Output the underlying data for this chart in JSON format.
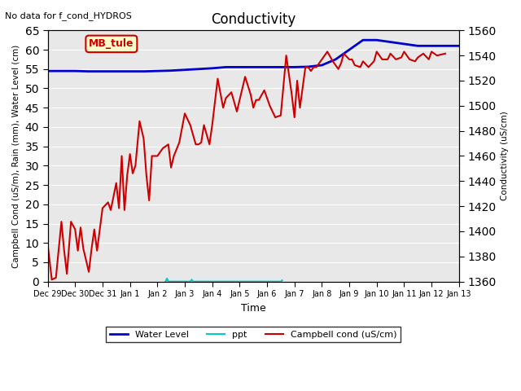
{
  "title": "Conductivity",
  "top_left_text": "No data for f_cond_HYDROS",
  "xlabel": "Time",
  "ylabel_left": "Campbell Cond (uS/m), Rain (mm), Water Level (cm)",
  "ylabel_right": "Conductivity (uS/cm)",
  "ylim_left": [
    0,
    65
  ],
  "ylim_right": [
    1360,
    1560
  ],
  "yticks_left": [
    0,
    5,
    10,
    15,
    20,
    25,
    30,
    35,
    40,
    45,
    50,
    55,
    60,
    65
  ],
  "yticks_right": [
    1360,
    1380,
    1400,
    1420,
    1440,
    1460,
    1480,
    1500,
    1520,
    1540,
    1560
  ],
  "background_color": "#e8e8e8",
  "annotation_box": "MB_tule",
  "annotation_box_color": "#ffffcc",
  "annotation_box_edge": "#cc0000",
  "annotation_text_color": "#cc0000",
  "water_level_x": [
    0,
    0.5,
    1,
    1.5,
    2,
    2.5,
    3,
    3.5,
    4,
    4.5,
    5,
    5.5,
    6,
    6.5,
    7,
    7.5,
    8,
    8.5,
    9,
    9.5,
    10,
    10.5,
    11,
    11.5,
    12,
    12.5,
    13,
    13.5,
    14,
    14.5,
    15
  ],
  "water_level_y": [
    54.5,
    54.5,
    54.5,
    54.4,
    54.4,
    54.4,
    54.4,
    54.4,
    54.5,
    54.6,
    54.8,
    55.0,
    55.2,
    55.5,
    55.5,
    55.5,
    55.5,
    55.5,
    55.5,
    55.6,
    56.0,
    57.5,
    60.0,
    62.5,
    62.5,
    62.0,
    61.5,
    61.0,
    61.0,
    61.0,
    61.0
  ],
  "campbell_x": [
    0,
    0.15,
    0.3,
    0.5,
    0.6,
    0.7,
    0.85,
    1.0,
    1.1,
    1.2,
    1.3,
    1.5,
    1.6,
    1.7,
    1.8,
    2.0,
    2.2,
    2.3,
    2.5,
    2.6,
    2.7,
    2.8,
    2.9,
    3.0,
    3.1,
    3.2,
    3.35,
    3.5,
    3.6,
    3.7,
    3.8,
    4.0,
    4.2,
    4.4,
    4.5,
    4.6,
    4.8,
    5.0,
    5.2,
    5.4,
    5.5,
    5.6,
    5.7,
    5.9,
    6.0,
    6.2,
    6.4,
    6.5,
    6.7,
    6.9,
    7.0,
    7.2,
    7.4,
    7.5,
    7.6,
    7.7,
    7.9,
    8.1,
    8.3,
    8.5,
    8.7,
    8.9,
    9.0,
    9.1,
    9.2,
    9.4,
    9.5,
    9.6,
    9.7,
    9.8,
    10.0,
    10.2,
    10.4,
    10.6,
    10.7,
    10.8,
    11.0,
    11.1,
    11.2,
    11.4,
    11.5,
    11.7,
    11.9,
    12.0,
    12.2,
    12.4,
    12.5,
    12.7,
    12.9,
    13.0,
    13.2,
    13.4,
    13.5,
    13.7,
    13.9,
    14.0,
    14.2,
    14.5
  ],
  "campbell_y": [
    9.5,
    0.5,
    1.0,
    15.5,
    8.0,
    2.0,
    15.5,
    13.5,
    8.0,
    14.0,
    8.5,
    2.5,
    8.5,
    13.5,
    8.0,
    19.0,
    20.5,
    18.5,
    25.5,
    19.0,
    32.5,
    18.5,
    27.5,
    33.0,
    28.0,
    30.0,
    41.5,
    37.0,
    27.5,
    21.0,
    32.5,
    32.5,
    34.5,
    35.5,
    29.5,
    32.5,
    36.0,
    43.5,
    40.5,
    35.5,
    35.5,
    36.0,
    40.5,
    35.5,
    40.5,
    52.5,
    45.0,
    47.5,
    49.0,
    44.0,
    47.0,
    53.0,
    48.5,
    45.0,
    47.0,
    47.0,
    49.5,
    45.5,
    42.5,
    43.0,
    58.5,
    48.5,
    42.5,
    52.0,
    45.0,
    55.5,
    55.5,
    54.5,
    55.5,
    55.5,
    57.5,
    59.5,
    57.0,
    55.0,
    56.5,
    59.0,
    57.5,
    57.5,
    56.0,
    55.5,
    57.0,
    55.5,
    57.0,
    59.5,
    57.5,
    57.5,
    59.0,
    57.5,
    58.0,
    59.5,
    57.5,
    57.0,
    58.0,
    59.0,
    57.5,
    59.5,
    58.5,
    59.0
  ],
  "ppt_x": [
    4.3,
    4.35,
    4.4,
    5.2,
    5.25,
    5.3,
    8.5,
    8.55
  ],
  "ppt_y": [
    0.0,
    0.8,
    0.0,
    0.0,
    0.5,
    0.0,
    0.0,
    0.3
  ],
  "xlim": [
    0,
    15
  ],
  "xtick_positions": [
    0,
    1,
    2,
    3,
    4,
    5,
    6,
    7,
    8,
    9,
    10,
    11,
    12,
    13,
    14,
    15
  ],
  "xtick_labels": [
    "Dec 29",
    "Dec 30",
    "Dec 31",
    "Jan 1",
    "Jan 2",
    "Jan 3",
    "Jan 4",
    "Jan 5",
    "Jan 6",
    "Jan 7",
    "Jan 8",
    "Jan 9",
    "Jan 10",
    "Jan 11",
    "Jan 12",
    "Jan 13"
  ],
  "water_level_color": "#0000cc",
  "ppt_color": "#00cccc",
  "campbell_color": "#cc0000",
  "legend_labels": [
    "Water Level",
    "ppt",
    "Campbell cond (uS/cm)"
  ]
}
